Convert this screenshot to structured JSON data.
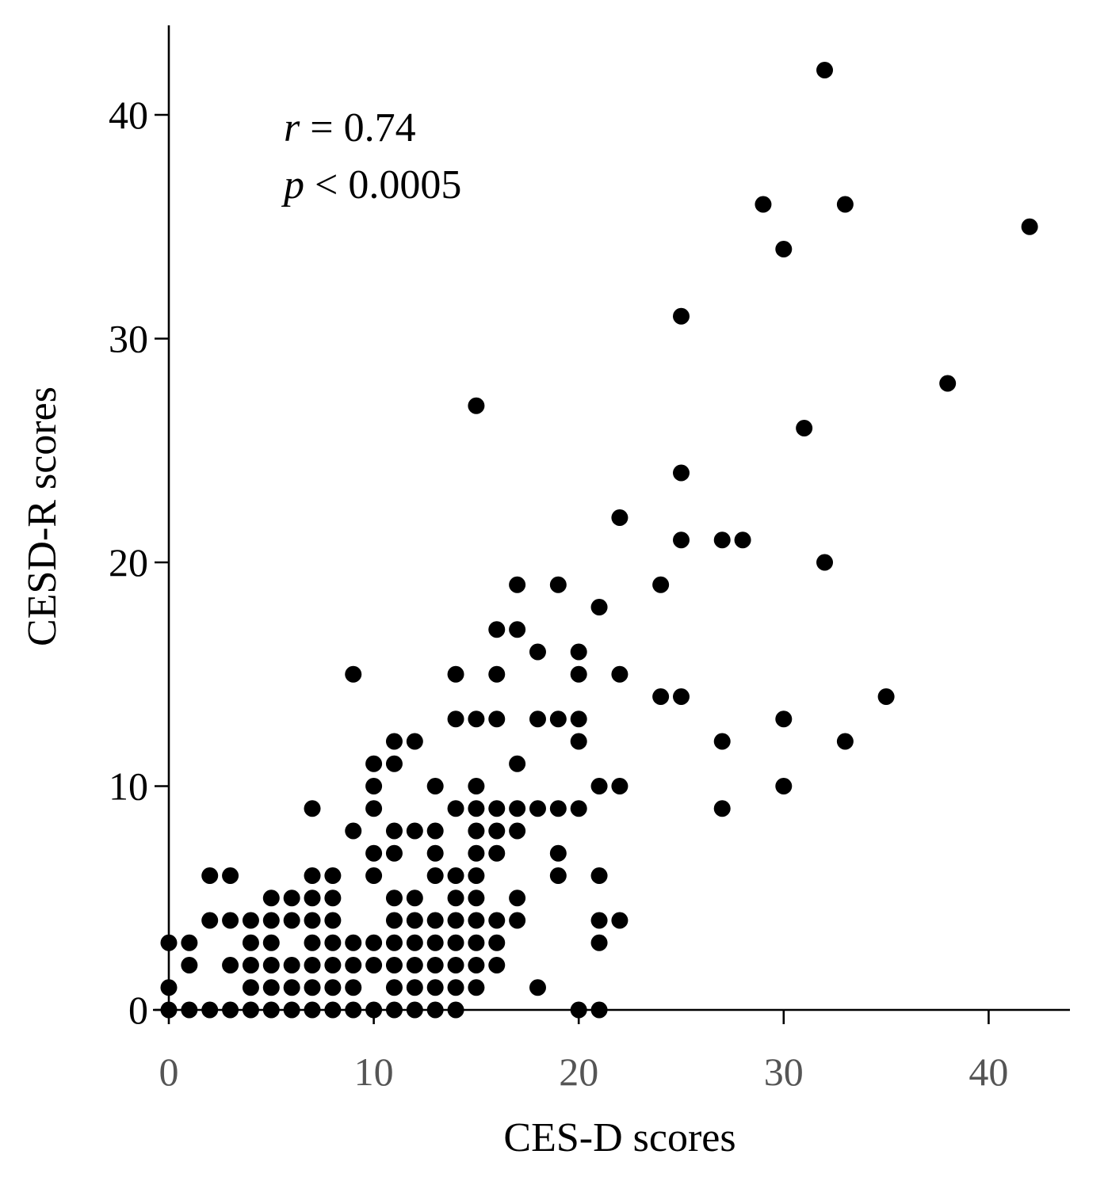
{
  "chart_data": {
    "type": "scatter",
    "title": "",
    "xlabel": "CES-D scores",
    "ylabel": "CESD-R scores",
    "xlim": [
      -0.8,
      44
    ],
    "ylim": [
      -0.8,
      43.8
    ],
    "xticks": [
      0,
      10,
      20,
      30,
      40
    ],
    "yticks": [
      0,
      10,
      20,
      30,
      40
    ],
    "xtick_labels": [
      "0",
      "10",
      "20",
      "30",
      "40"
    ],
    "ytick_labels": [
      "0",
      "10",
      "20",
      "30",
      "40"
    ],
    "grid": false,
    "legend": "none",
    "marker_color": "#000000",
    "annotations": [
      {
        "variable": "r",
        "text": " = 0.74"
      },
      {
        "variable": "p",
        "text": " < 0.0005"
      }
    ],
    "points": [
      [
        0,
        0
      ],
      [
        1,
        0
      ],
      [
        2,
        0
      ],
      [
        3,
        0
      ],
      [
        4,
        0
      ],
      [
        5,
        0
      ],
      [
        6,
        0
      ],
      [
        7,
        0
      ],
      [
        8,
        0
      ],
      [
        9,
        0
      ],
      [
        10,
        0
      ],
      [
        11,
        0
      ],
      [
        12,
        0
      ],
      [
        13,
        0
      ],
      [
        14,
        0
      ],
      [
        20,
        0
      ],
      [
        21,
        0
      ],
      [
        0,
        1
      ],
      [
        0,
        3
      ],
      [
        1,
        2
      ],
      [
        1,
        3
      ],
      [
        2,
        4
      ],
      [
        2,
        6
      ],
      [
        3,
        2
      ],
      [
        3,
        4
      ],
      [
        3,
        6
      ],
      [
        4,
        1
      ],
      [
        4,
        2
      ],
      [
        4,
        3
      ],
      [
        4,
        4
      ],
      [
        5,
        1
      ],
      [
        5,
        2
      ],
      [
        5,
        3
      ],
      [
        5,
        4
      ],
      [
        5,
        5
      ],
      [
        6,
        1
      ],
      [
        6,
        2
      ],
      [
        6,
        4
      ],
      [
        6,
        5
      ],
      [
        7,
        1
      ],
      [
        7,
        2
      ],
      [
        7,
        3
      ],
      [
        7,
        4
      ],
      [
        7,
        5
      ],
      [
        7,
        6
      ],
      [
        7,
        9
      ],
      [
        8,
        1
      ],
      [
        8,
        2
      ],
      [
        8,
        3
      ],
      [
        8,
        4
      ],
      [
        8,
        5
      ],
      [
        8,
        6
      ],
      [
        9,
        1
      ],
      [
        9,
        2
      ],
      [
        9,
        3
      ],
      [
        9,
        8
      ],
      [
        9,
        15
      ],
      [
        10,
        2
      ],
      [
        10,
        3
      ],
      [
        10,
        6
      ],
      [
        10,
        7
      ],
      [
        10,
        9
      ],
      [
        10,
        10
      ],
      [
        10,
        11
      ],
      [
        11,
        1
      ],
      [
        11,
        2
      ],
      [
        11,
        3
      ],
      [
        11,
        4
      ],
      [
        11,
        5
      ],
      [
        11,
        7
      ],
      [
        11,
        8
      ],
      [
        11,
        11
      ],
      [
        11,
        12
      ],
      [
        12,
        1
      ],
      [
        12,
        2
      ],
      [
        12,
        3
      ],
      [
        12,
        4
      ],
      [
        12,
        5
      ],
      [
        12,
        8
      ],
      [
        12,
        12
      ],
      [
        13,
        1
      ],
      [
        13,
        2
      ],
      [
        13,
        3
      ],
      [
        13,
        4
      ],
      [
        13,
        6
      ],
      [
        13,
        7
      ],
      [
        13,
        8
      ],
      [
        13,
        10
      ],
      [
        14,
        1
      ],
      [
        14,
        2
      ],
      [
        14,
        3
      ],
      [
        14,
        4
      ],
      [
        14,
        5
      ],
      [
        14,
        6
      ],
      [
        14,
        9
      ],
      [
        14,
        13
      ],
      [
        14,
        15
      ],
      [
        15,
        1
      ],
      [
        15,
        2
      ],
      [
        15,
        3
      ],
      [
        15,
        4
      ],
      [
        15,
        5
      ],
      [
        15,
        6
      ],
      [
        15,
        7
      ],
      [
        15,
        8
      ],
      [
        15,
        9
      ],
      [
        15,
        10
      ],
      [
        15,
        13
      ],
      [
        15,
        27
      ],
      [
        16,
        2
      ],
      [
        16,
        3
      ],
      [
        16,
        4
      ],
      [
        16,
        7
      ],
      [
        16,
        8
      ],
      [
        16,
        9
      ],
      [
        16,
        13
      ],
      [
        16,
        15
      ],
      [
        16,
        17
      ],
      [
        17,
        4
      ],
      [
        17,
        5
      ],
      [
        17,
        8
      ],
      [
        17,
        9
      ],
      [
        17,
        11
      ],
      [
        17,
        17
      ],
      [
        17,
        19
      ],
      [
        18,
        1
      ],
      [
        18,
        9
      ],
      [
        18,
        13
      ],
      [
        18,
        16
      ],
      [
        19,
        6
      ],
      [
        19,
        7
      ],
      [
        19,
        9
      ],
      [
        19,
        13
      ],
      [
        19,
        19
      ],
      [
        20,
        9
      ],
      [
        20,
        12
      ],
      [
        20,
        13
      ],
      [
        20,
        15
      ],
      [
        20,
        16
      ],
      [
        21,
        3
      ],
      [
        21,
        4
      ],
      [
        21,
        6
      ],
      [
        21,
        10
      ],
      [
        21,
        18
      ],
      [
        22,
        4
      ],
      [
        22,
        10
      ],
      [
        22,
        15
      ],
      [
        22,
        22
      ],
      [
        24,
        14
      ],
      [
        24,
        19
      ],
      [
        25,
        14
      ],
      [
        25,
        21
      ],
      [
        25,
        24
      ],
      [
        25,
        31
      ],
      [
        27,
        9
      ],
      [
        27,
        12
      ],
      [
        27,
        21
      ],
      [
        28,
        21
      ],
      [
        29,
        36
      ],
      [
        30,
        10
      ],
      [
        30,
        13
      ],
      [
        30,
        34
      ],
      [
        31,
        26
      ],
      [
        32,
        20
      ],
      [
        32,
        42
      ],
      [
        33,
        12
      ],
      [
        33,
        36
      ],
      [
        35,
        14
      ],
      [
        38,
        28
      ],
      [
        42,
        35
      ]
    ]
  }
}
